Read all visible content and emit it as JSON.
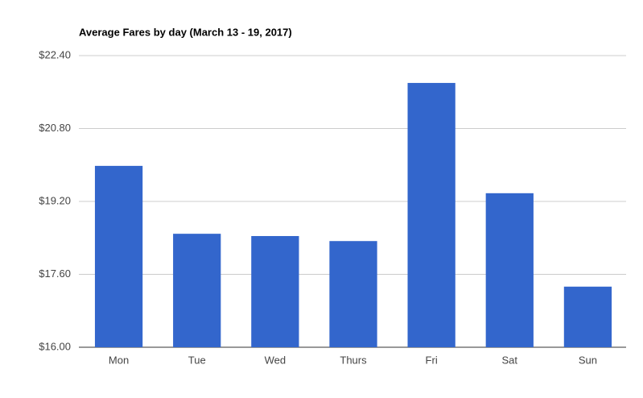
{
  "chart_data": {
    "type": "bar",
    "title": "Average Fares by day (March 13 - 19, 2017)",
    "categories": [
      "Mon",
      "Tue",
      "Wed",
      "Thurs",
      "Fri",
      "Sat",
      "Sun"
    ],
    "values": [
      19.98,
      18.49,
      18.44,
      18.33,
      21.8,
      19.38,
      17.33
    ],
    "color": "#3366cc",
    "ylim": [
      16,
      22.4
    ],
    "yticks": [
      {
        "value": 16,
        "label": "$16.00"
      },
      {
        "value": 17.6,
        "label": "$17.60"
      },
      {
        "value": 19.2,
        "label": "$19.20"
      },
      {
        "value": 20.8,
        "label": "$20.80"
      },
      {
        "value": 22.4,
        "label": "$22.40"
      }
    ],
    "grid": true
  }
}
